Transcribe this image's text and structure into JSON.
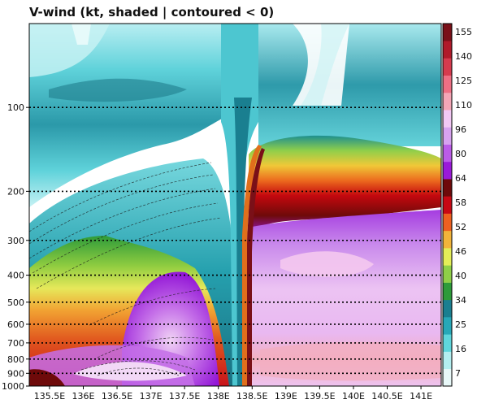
{
  "chart_data": {
    "type": "heatmap",
    "title": "V-wind (kt, shaded | contoured < 0)",
    "x_tick_labels": [
      "135.5E",
      "136E",
      "136.5E",
      "137E",
      "137.5E",
      "138E",
      "138.5E",
      "139E",
      "139.5E",
      "140E",
      "140.5E",
      "141E"
    ],
    "x_tick_values": [
      135.5,
      136,
      136.5,
      137,
      137.5,
      138,
      138.5,
      139,
      139.5,
      140,
      140.5,
      141
    ],
    "xlim": [
      135.2,
      141.3
    ],
    "y_tick_labels": [
      "100",
      "200",
      "300",
      "400",
      "500",
      "600",
      "700",
      "800",
      "900",
      "1000"
    ],
    "y_tick_values": [
      100,
      200,
      300,
      400,
      500,
      600,
      700,
      800,
      900,
      1000
    ],
    "ylim": [
      1000,
      50
    ],
    "y_scale": "log",
    "dotted_lines_at": [
      100,
      200,
      300,
      400,
      500,
      600,
      700,
      800,
      900
    ],
    "colorbar": {
      "labels": [
        "155",
        "140",
        "125",
        "110",
        "96",
        "80",
        "64",
        "58",
        "52",
        "46",
        "40",
        "34",
        "25",
        "16",
        "7"
      ],
      "colors": [
        "#e8f8f8",
        "#b3eef0",
        "#5fd6dc",
        "#27a8b8",
        "#1a7f90",
        "#2d9b3a",
        "#8fd048",
        "#e4ee58",
        "#f2b43a",
        "#ee6020",
        "#c80814",
        "#6e0a0a",
        "#9a1ad8",
        "#bb5ce8",
        "#d7a2ef",
        "#f2c8f4",
        "#f4a6b6",
        "#ee6f84",
        "#d63b4e",
        "#b01a2a",
        "#7a1018"
      ]
    },
    "regions": {
      "upper_jet_west": {
        "lon": [
          135.2,
          138.0
        ],
        "level_hPa": [
          50,
          170
        ],
        "v_kt": [
          7,
          25
        ]
      },
      "lower_west_positive": {
        "lon": [
          136.3,
          138.0
        ],
        "level_hPa": [
          330,
          1000
        ],
        "v_kt": [
          7,
          80
        ]
      },
      "negative_contours_west": {
        "lon": [
          135.2,
          137.9
        ],
        "level_hPa": [
          150,
          1000
        ],
        "v_kt": "< 0"
      },
      "upper_jet_east": {
        "lon": [
          138.4,
          141.3
        ],
        "level_hPa": [
          150,
          200
        ],
        "v_kt": [
          46,
          64
        ]
      },
      "lower_east_positive": {
        "lon": [
          138.4,
          141.3
        ],
        "level_hPa": [
          200,
          1000
        ],
        "v_kt": [
          80,
          110
        ]
      }
    }
  }
}
